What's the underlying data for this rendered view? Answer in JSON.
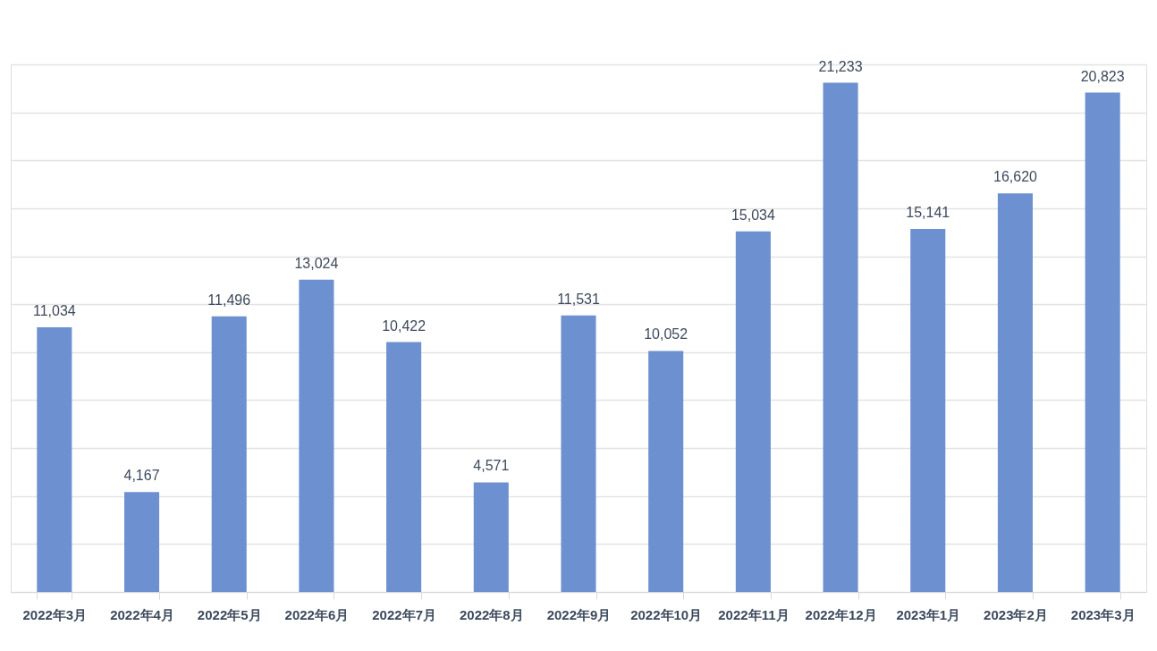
{
  "chart_data": {
    "type": "bar",
    "categories": [
      "2022年3月",
      "2022年4月",
      "2022年5月",
      "2022年6月",
      "2022年7月",
      "2022年8月",
      "2022年9月",
      "2022年10月",
      "2022年11月",
      "2022年12月",
      "2023年1月",
      "2023年2月",
      "2023年3月"
    ],
    "values": [
      11034,
      4167,
      11496,
      13024,
      10422,
      4571,
      11531,
      10052,
      15034,
      21233,
      15141,
      16620,
      20823
    ],
    "value_labels": [
      "11,034",
      "4,167",
      "11,496",
      "13,024",
      "10,422",
      "4,571",
      "11,531",
      "10,052",
      "15,034",
      "21,233",
      "15,141",
      "16,620",
      "20,823"
    ],
    "color": "#6d90d0",
    "grid": "y",
    "tick_labels": "x"
  }
}
